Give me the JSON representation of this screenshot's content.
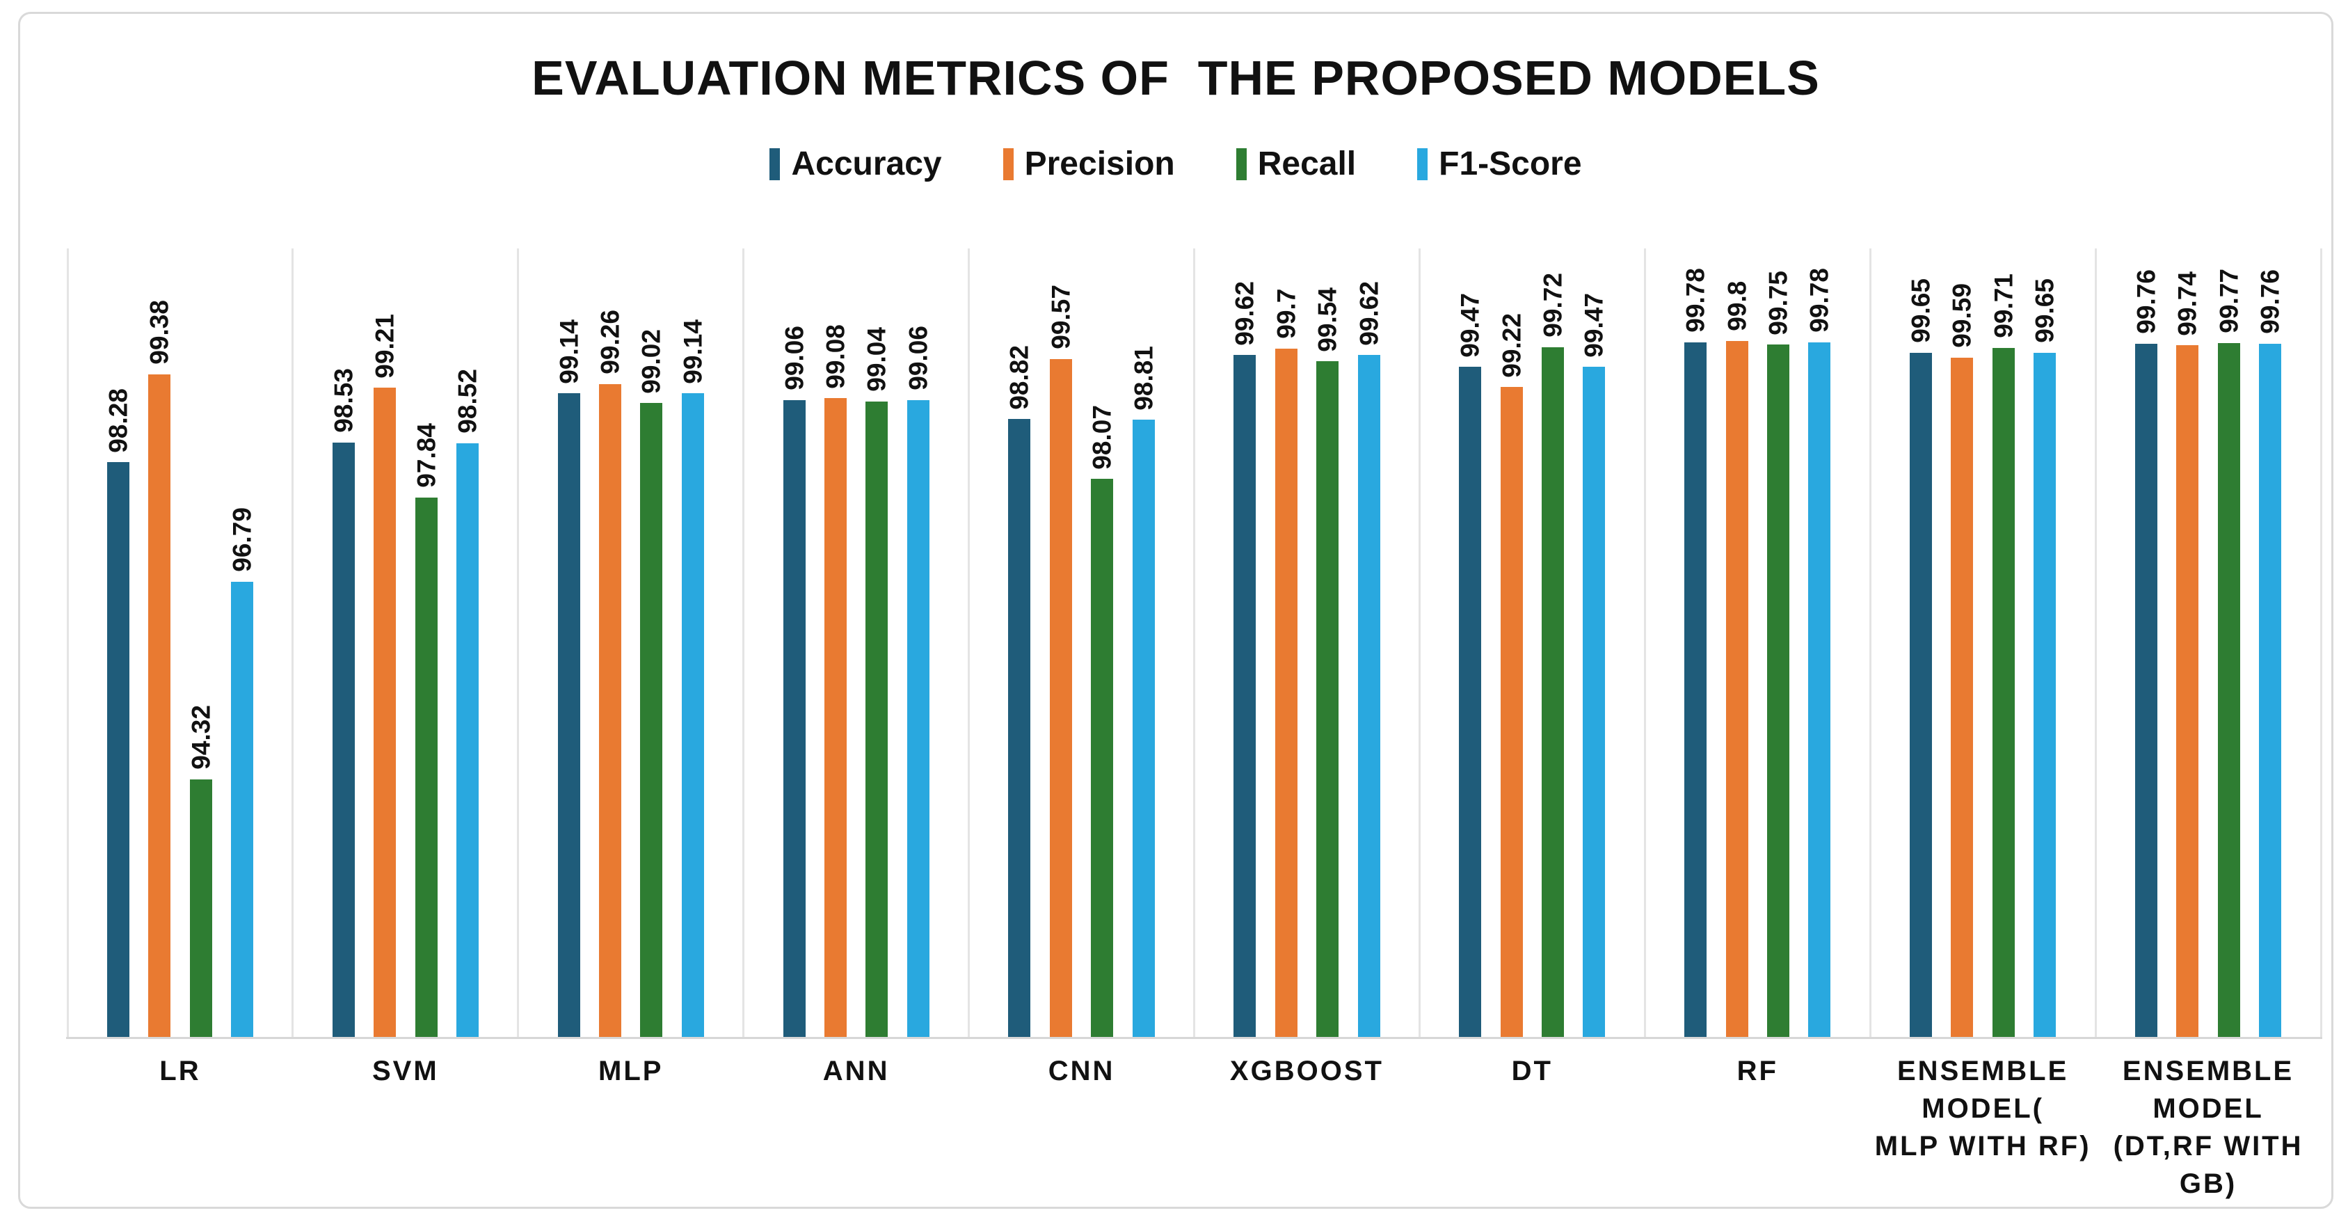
{
  "page": {
    "background": "#FFFFFF",
    "card_border_color": "#D9D9D9"
  },
  "chart_data": {
    "type": "bar",
    "title": "EVALUATION METRICS OF  THE PROPOSED MODELS",
    "xlabel": "",
    "ylabel": "",
    "y_axis_visible": false,
    "ylim_estimated": [
      91.1,
      101
    ],
    "gridlines": "vertical category separators only, light gray; horizontal baseline under bars",
    "legend_position": "top-center",
    "value_labels_rotated": true,
    "categories": [
      "LR",
      "SVM",
      "MLP",
      "ANN",
      "CNN",
      "XGBOOST",
      "DT",
      "RF",
      "ENSEMBLE MODEL( MLP WITH RF)",
      "ENSEMBLE MODEL (DT,RF WITH GB)"
    ],
    "category_label_lines": [
      [
        "LR"
      ],
      [
        "SVM"
      ],
      [
        "MLP"
      ],
      [
        "ANN"
      ],
      [
        "CNN"
      ],
      [
        "XGBOOST"
      ],
      [
        "DT"
      ],
      [
        "RF"
      ],
      [
        "ENSEMBLE",
        "MODEL(",
        "MLP WITH RF)"
      ],
      [
        "ENSEMBLE",
        "MODEL",
        "(DT,RF WITH",
        "GB)"
      ]
    ],
    "series": [
      {
        "name": "Accuracy",
        "color": "#1F5C7A",
        "values": [
          98.28,
          98.53,
          99.14,
          99.06,
          98.82,
          99.62,
          99.47,
          99.78,
          99.65,
          99.76
        ],
        "labels": [
          "98.28",
          "98.53",
          "99.14",
          "99.06",
          "98.82",
          "99.62",
          "99.47",
          "99.78",
          "99.65",
          "99.76"
        ]
      },
      {
        "name": "Precision",
        "color": "#E97A31",
        "values": [
          99.38,
          99.21,
          99.26,
          99.08,
          99.57,
          99.7,
          99.22,
          99.8,
          99.59,
          99.74
        ],
        "labels": [
          "99.38",
          "99.21",
          "99.26",
          "99.08",
          "99.57",
          "99.7",
          "99.22",
          "99.8",
          "99.59",
          "99.74"
        ]
      },
      {
        "name": "Recall",
        "color": "#2E7D32",
        "values": [
          94.32,
          97.84,
          99.02,
          99.04,
          98.07,
          99.54,
          99.72,
          99.75,
          99.71,
          99.77
        ],
        "labels": [
          "94.32",
          "97.84",
          "99.02",
          "99.04",
          "98.07",
          "99.54",
          "99.72",
          "99.75",
          "99.71",
          "99.77"
        ]
      },
      {
        "name": "F1-Score",
        "color": "#29A8DF",
        "values": [
          96.79,
          98.52,
          99.14,
          99.06,
          98.81,
          99.62,
          99.47,
          99.78,
          99.65,
          99.76
        ],
        "labels": [
          "96.79",
          "98.52",
          "99.14",
          "99.06",
          "98.81",
          "99.62",
          "99.47",
          "99.78",
          "99.65",
          "99.76"
        ]
      }
    ]
  }
}
